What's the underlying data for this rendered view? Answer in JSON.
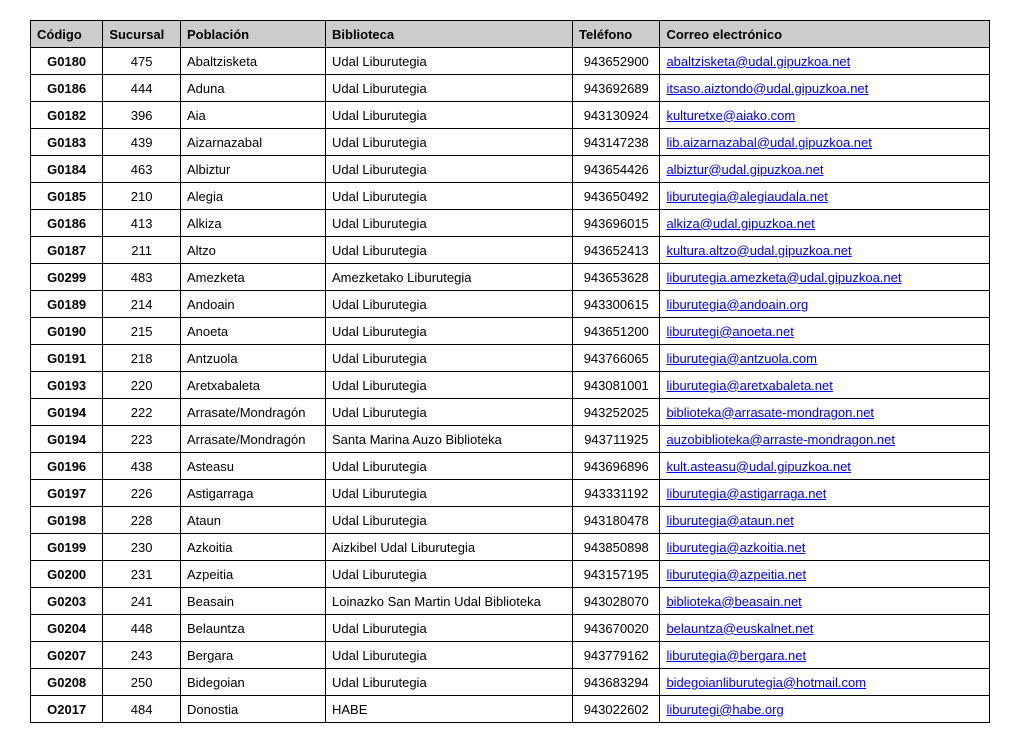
{
  "table": {
    "columns": [
      "Código",
      "Sucursal",
      "Población",
      "Biblioteca",
      "Teléfono",
      "Correo electrónico"
    ],
    "rows": [
      {
        "codigo": "G0180",
        "sucursal": "475",
        "poblacion": "Abaltzisketa",
        "biblioteca": "Udal Liburutegia",
        "telefono": "943652900",
        "correo": "abaltzisketa@udal.gipuzkoa.net"
      },
      {
        "codigo": "G0186",
        "sucursal": "444",
        "poblacion": "Aduna",
        "biblioteca": "Udal Liburutegia",
        "telefono": "943692689",
        "correo": "itsaso.aiztondo@udal.gipuzkoa.net"
      },
      {
        "codigo": "G0182",
        "sucursal": "396",
        "poblacion": "Aia",
        "biblioteca": "Udal Liburutegia",
        "telefono": "943130924",
        "correo": "kulturetxe@aiako.com"
      },
      {
        "codigo": "G0183",
        "sucursal": "439",
        "poblacion": "Aizarnazabal",
        "biblioteca": "Udal Liburutegia",
        "telefono": "943147238",
        "correo": "lib.aizarnazabal@udal.gipuzkoa.net"
      },
      {
        "codigo": "G0184",
        "sucursal": "463",
        "poblacion": "Albiztur",
        "biblioteca": "Udal Liburutegia",
        "telefono": "943654426",
        "correo": "albiztur@udal.gipuzkoa.net"
      },
      {
        "codigo": "G0185",
        "sucursal": "210",
        "poblacion": "Alegia",
        "biblioteca": "Udal Liburutegia",
        "telefono": "943650492",
        "correo": "liburutegia@alegiaudala.net"
      },
      {
        "codigo": "G0186",
        "sucursal": "413",
        "poblacion": "Alkiza",
        "biblioteca": "Udal Liburutegia",
        "telefono": "943696015",
        "correo": "alkiza@udal.gipuzkoa.net"
      },
      {
        "codigo": "G0187",
        "sucursal": "211",
        "poblacion": "Altzo",
        "biblioteca": "Udal Liburutegia",
        "telefono": "943652413",
        "correo": "kultura.altzo@udal.gipuzkoa.net"
      },
      {
        "codigo": "G0299",
        "sucursal": "483",
        "poblacion": "Amezketa",
        "biblioteca": "Amezketako Liburutegia",
        "telefono": "943653628",
        "correo": "liburutegia.amezketa@udal.gipuzkoa.net"
      },
      {
        "codigo": "G0189",
        "sucursal": "214",
        "poblacion": "Andoain",
        "biblioteca": "Udal Liburutegia",
        "telefono": "943300615",
        "correo": "liburutegia@andoain.org"
      },
      {
        "codigo": "G0190",
        "sucursal": "215",
        "poblacion": "Anoeta",
        "biblioteca": "Udal Liburutegia",
        "telefono": "943651200",
        "correo": "liburutegi@anoeta.net"
      },
      {
        "codigo": "G0191",
        "sucursal": "218",
        "poblacion": "Antzuola",
        "biblioteca": "Udal Liburutegia",
        "telefono": "943766065",
        "correo": "liburutegia@antzuola.com"
      },
      {
        "codigo": "G0193",
        "sucursal": "220",
        "poblacion": "Aretxabaleta",
        "biblioteca": "Udal Liburutegia",
        "telefono": "943081001",
        "correo": "liburutegia@aretxabaleta.net"
      },
      {
        "codigo": "G0194",
        "sucursal": "222",
        "poblacion": "Arrasate/Mondragón",
        "biblioteca": "Udal Liburutegia",
        "telefono": "943252025",
        "correo": "biblioteka@arrasate-mondragon.net"
      },
      {
        "codigo": "G0194",
        "sucursal": "223",
        "poblacion": "Arrasate/Mondragón",
        "biblioteca": "Santa Marina Auzo Biblioteka",
        "telefono": "943711925",
        "correo": "auzobiblioteka@arraste-mondragon.net"
      },
      {
        "codigo": "G0196",
        "sucursal": "438",
        "poblacion": "Asteasu",
        "biblioteca": "Udal Liburutegia",
        "telefono": "943696896",
        "correo": "kult.asteasu@udal.gipuzkoa.net"
      },
      {
        "codigo": "G0197",
        "sucursal": "226",
        "poblacion": "Astigarraga",
        "biblioteca": "Udal Liburutegia",
        "telefono": "943331192",
        "correo": "liburutegia@astigarraga.net"
      },
      {
        "codigo": "G0198",
        "sucursal": "228",
        "poblacion": "Ataun",
        "biblioteca": "Udal Liburutegia",
        "telefono": "943180478",
        "correo": "liburutegia@ataun.net"
      },
      {
        "codigo": "G0199",
        "sucursal": "230",
        "poblacion": "Azkoitia",
        "biblioteca": "Aizkibel Udal Liburutegia",
        "telefono": "943850898",
        "correo": "liburutegia@azkoitia.net"
      },
      {
        "codigo": "G0200",
        "sucursal": "231",
        "poblacion": "Azpeitia",
        "biblioteca": "Udal Liburutegia",
        "telefono": "943157195",
        "correo": "liburutegia@azpeitia.net"
      },
      {
        "codigo": "G0203",
        "sucursal": "241",
        "poblacion": "Beasain",
        "biblioteca": "Loinazko San Martin Udal Biblioteka",
        "telefono": "943028070",
        "correo": "biblioteka@beasain.net"
      },
      {
        "codigo": "G0204",
        "sucursal": "448",
        "poblacion": "Belauntza",
        "biblioteca": "Udal Liburutegia",
        "telefono": "943670020",
        "correo": "belauntza@euskalnet.net"
      },
      {
        "codigo": "G0207",
        "sucursal": "243",
        "poblacion": "Bergara",
        "biblioteca": "Udal Liburutegia",
        "telefono": "943779162",
        "correo": "liburutegia@bergara.net"
      },
      {
        "codigo": "G0208",
        "sucursal": "250",
        "poblacion": "Bidegoian",
        "biblioteca": "Udal Liburutegia",
        "telefono": "943683294",
        "correo": "bidegoianliburutegia@hotmail.com"
      },
      {
        "codigo": "O2017",
        "sucursal": "484",
        "poblacion": "Donostia",
        "biblioteca": "HABE",
        "telefono": "943022602",
        "correo": "liburutegi@habe.org"
      }
    ]
  }
}
